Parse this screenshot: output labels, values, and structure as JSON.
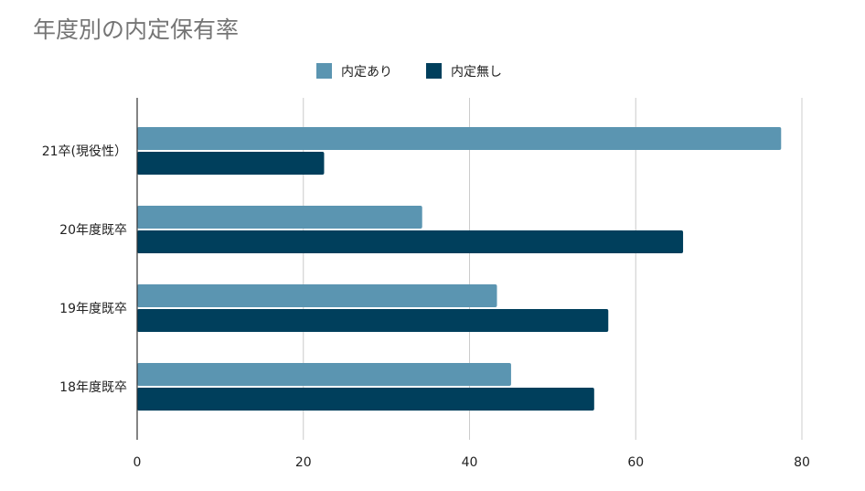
{
  "chart_data": {
    "type": "bar",
    "orientation": "horizontal",
    "title": "年度別の内定保有率",
    "xlabel": "",
    "ylabel": "",
    "categories": [
      "21卒(現役性）",
      "20年度既卒",
      "19年度既卒",
      "18年度既卒"
    ],
    "series": [
      {
        "name": "内定あり",
        "color": "#5b95b1",
        "values": [
          77.5,
          34.3,
          43.3,
          45.0
        ]
      },
      {
        "name": "内定無し",
        "color": "#003f5c",
        "values": [
          22.5,
          65.7,
          56.7,
          55.0
        ]
      }
    ],
    "xlim": [
      0,
      80
    ],
    "xticks": [
      "0",
      "20",
      "40",
      "60",
      "80"
    ],
    "grid": true,
    "legend_position": "top"
  }
}
